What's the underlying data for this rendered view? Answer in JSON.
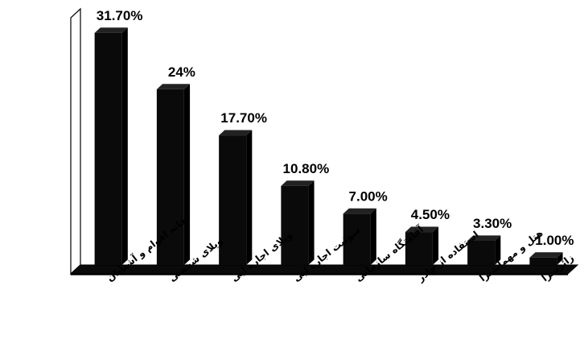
{
  "chart_data": {
    "type": "bar",
    "style": "3d",
    "title": "",
    "xlabel": "",
    "ylabel": "",
    "ylim": [
      0,
      33
    ],
    "grid": false,
    "legend": "none",
    "bar_color": "#0a0a0a",
    "categories": [
      "خانه اقوام و آشنایان",
      "ویلای شخصی",
      "ویلای اجاره ایی",
      "سوئیت اجاره ایی",
      "آقامتگاه سازمانی",
      "استفاده از چادر",
      "هتل و مهمانسرا",
      "زائرسرا"
    ],
    "values": [
      31.7,
      24,
      17.7,
      10.8,
      7.0,
      4.5,
      3.3,
      1.0
    ],
    "value_labels": [
      "31.70%",
      "24%",
      "17.70%",
      "10.80%",
      "7.00%",
      "4.50%",
      "3.30%",
      "1.00%"
    ]
  }
}
